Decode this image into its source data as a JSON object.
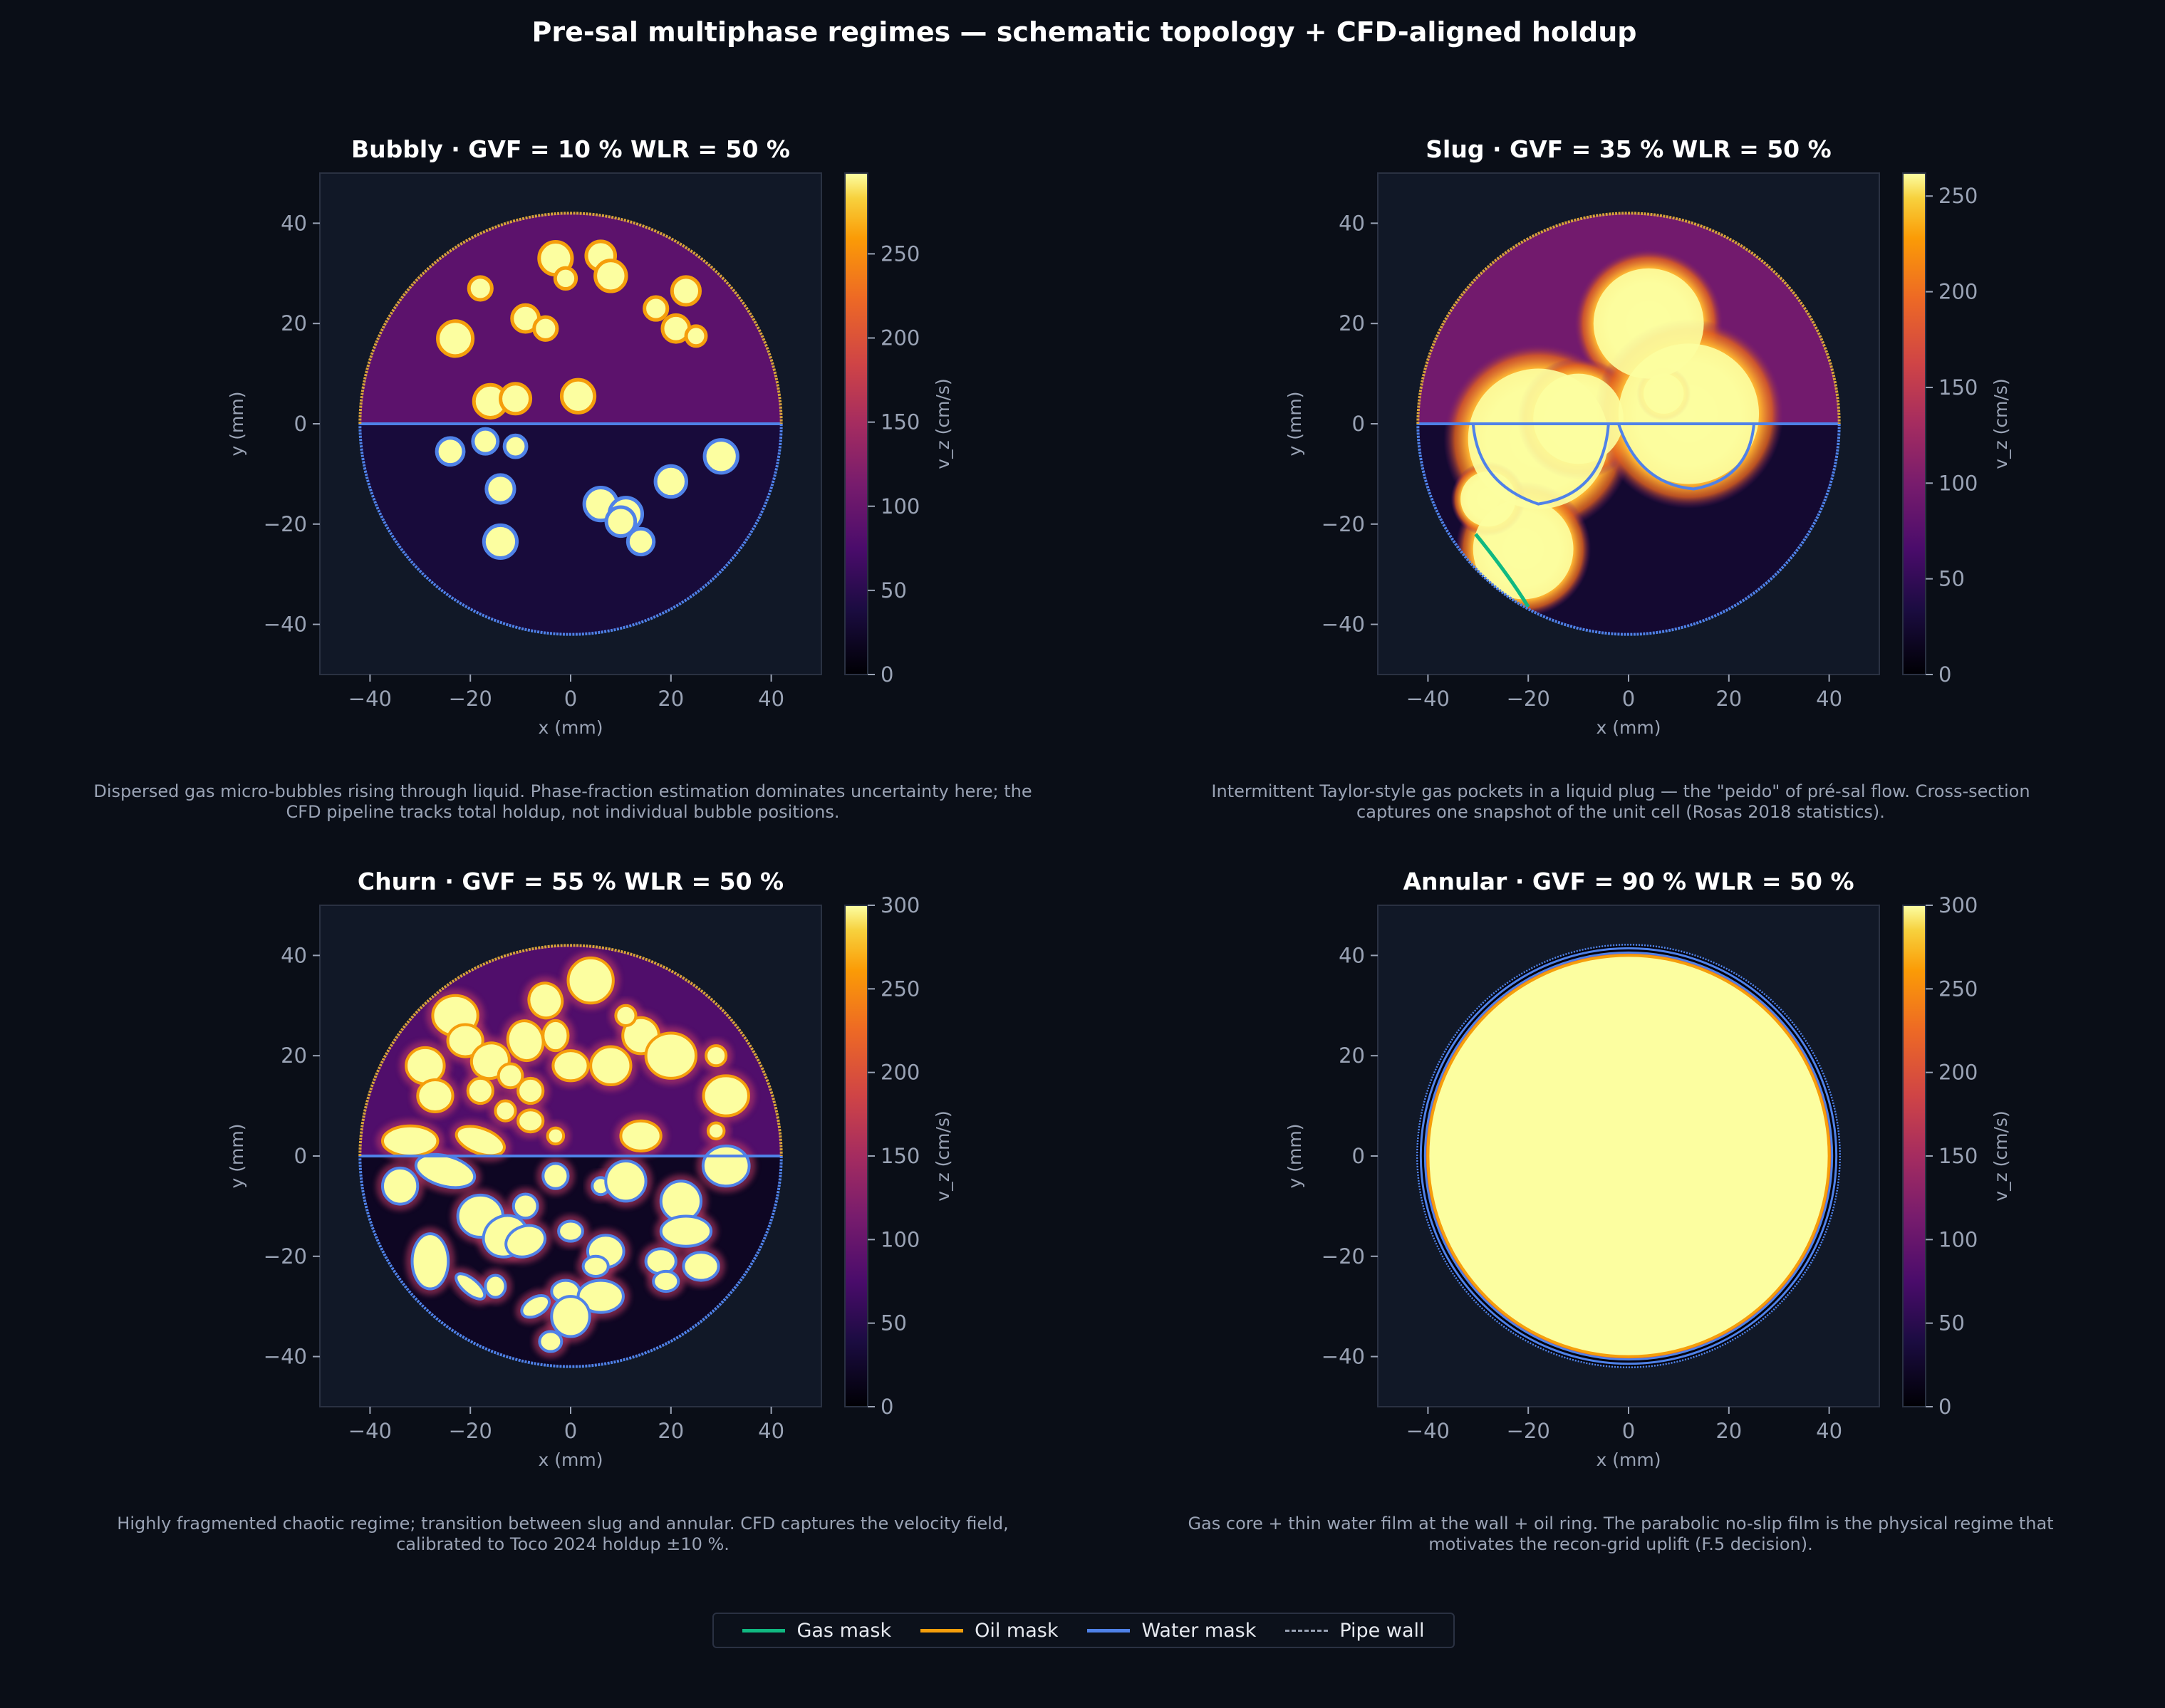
{
  "title": "Pre-sal multiphase regimes — schematic topology + CFD-aligned holdup",
  "colors": {
    "background": "#0a0e17",
    "panel": "#111827",
    "gas": "#10b981",
    "oil": "#f59e0b",
    "water": "#4f82e8",
    "pipe_wall": "#9aa3b5"
  },
  "chart_data": [
    {
      "type": "heatmap",
      "title": "Bubbly  · GVF = 10 % WLR = 50 %",
      "caption": "Dispersed gas micro-bubbles rising through liquid. Phase-fraction estimation dominates uncertainty here; the CFD pipeline tracks total holdup, not individual bubble positions.",
      "xlabel": "x  (mm)",
      "ylabel": "y  (mm)",
      "xlim": [
        -50,
        50
      ],
      "ylim": [
        -50,
        50
      ],
      "xticks": [
        -40,
        -20,
        0,
        20,
        40
      ],
      "yticks": [
        -40,
        -20,
        0,
        20,
        40
      ],
      "colorbar": {
        "label": "v_z  (cm/s)",
        "ticks": [
          0,
          50,
          100,
          150,
          200,
          250
        ],
        "max": 298
      },
      "pipe_radius_mm": 42,
      "oil_velocity": 90,
      "water_velocity": 35,
      "bubbles": [
        [
          -3,
          33,
          3
        ],
        [
          6,
          33.5,
          2.6
        ],
        [
          8,
          29.5,
          2.8
        ],
        [
          -1,
          29,
          1.8
        ],
        [
          -18,
          27,
          2
        ],
        [
          23,
          26.5,
          2.5
        ],
        [
          17,
          23,
          2
        ],
        [
          -9,
          21,
          2.4
        ],
        [
          -5,
          19,
          2
        ],
        [
          21,
          19,
          2.4
        ],
        [
          25,
          17.5,
          1.7
        ],
        [
          -23,
          17,
          3.2
        ],
        [
          -16,
          4.5,
          3
        ],
        [
          -11,
          5,
          2.7
        ],
        [
          1.5,
          5.5,
          3
        ],
        [
          -24,
          -5.5,
          2.4
        ],
        [
          -17,
          -3.5,
          2.2
        ],
        [
          -11,
          -4.5,
          1.9
        ],
        [
          30,
          -6.5,
          3
        ],
        [
          20,
          -11.5,
          2.8
        ],
        [
          -14,
          -13,
          2.5
        ],
        [
          6,
          -16,
          3
        ],
        [
          11,
          -18,
          3
        ],
        [
          10,
          -19.5,
          2.6
        ],
        [
          14,
          -23.5,
          2.3
        ],
        [
          -14,
          -23.5,
          3
        ]
      ]
    },
    {
      "type": "heatmap",
      "title": "Slug    · GVF = 35 % WLR = 50 %",
      "caption": "Intermittent Taylor-style gas pockets in a liquid plug — the \"peido\" of pré-sal flow. Cross-section captures one snapshot of the unit cell (Rosas 2018 statistics).",
      "xlabel": "x  (mm)",
      "ylabel": "y  (mm)",
      "xlim": [
        -50,
        50
      ],
      "ylim": [
        -50,
        50
      ],
      "xticks": [
        -40,
        -20,
        0,
        20,
        40
      ],
      "yticks": [
        -40,
        -20,
        0,
        20,
        40
      ],
      "colorbar": {
        "label": "v_z  (cm/s)",
        "ticks": [
          0,
          50,
          100,
          150,
          200,
          250
        ],
        "max": 262
      },
      "pipe_radius_mm": 42,
      "oil_velocity": 95,
      "water_velocity": 25,
      "pockets": [
        [
          4,
          20,
          11
        ],
        [
          -18,
          -3,
          14
        ],
        [
          -10,
          1,
          9
        ],
        [
          12,
          2,
          14
        ],
        [
          -21,
          -25,
          10
        ],
        [
          -28,
          -15,
          5.5
        ],
        [
          7,
          6,
          4
        ]
      ]
    },
    {
      "type": "heatmap",
      "title": "Churn   · GVF = 55 % WLR = 50 %",
      "caption": "Highly fragmented chaotic regime; transition between slug and annular. CFD captures the velocity field, calibrated to Toco 2024 holdup ±10 %.",
      "xlabel": "x  (mm)",
      "ylabel": "y  (mm)",
      "xlim": [
        -50,
        50
      ],
      "ylim": [
        -50,
        50
      ],
      "xticks": [
        -40,
        -20,
        0,
        20,
        40
      ],
      "yticks": [
        -40,
        -20,
        0,
        20,
        40
      ],
      "colorbar": {
        "label": "v_z  (cm/s)",
        "ticks": [
          0,
          50,
          100,
          150,
          200,
          250,
          300
        ],
        "max": 300
      },
      "pipe_radius_mm": 42,
      "oil_velocity": 80,
      "water_velocity": 20,
      "blobs": [
        [
          4,
          35,
          4.5,
          4.5,
          0
        ],
        [
          -5,
          31,
          3.3,
          3.5,
          20
        ],
        [
          -23,
          28,
          4.5,
          4,
          0
        ],
        [
          -21,
          23,
          3.5,
          3.2,
          0
        ],
        [
          -9,
          23,
          3.5,
          4,
          15
        ],
        [
          -3,
          24,
          2.5,
          3,
          0
        ],
        [
          14,
          24,
          3.6,
          3.6,
          0
        ],
        [
          11,
          28,
          2,
          2,
          0
        ],
        [
          -29,
          18,
          3.8,
          3.6,
          0
        ],
        [
          -16,
          19,
          3.8,
          3.5,
          20
        ],
        [
          -12,
          16,
          2.4,
          2.4,
          0
        ],
        [
          0,
          18,
          3.5,
          3,
          0
        ],
        [
          8,
          18,
          4,
          3.8,
          0
        ],
        [
          20,
          20,
          5,
          4.5,
          0
        ],
        [
          29,
          20,
          2,
          2,
          0
        ],
        [
          31,
          12,
          4.5,
          4,
          0
        ],
        [
          -27,
          12,
          3.5,
          3.2,
          0
        ],
        [
          -18,
          13,
          2.5,
          2.5,
          0
        ],
        [
          -8,
          13,
          2.5,
          2.5,
          0
        ],
        [
          -8,
          7,
          2.5,
          2.2,
          0
        ],
        [
          -13,
          9,
          2,
          2,
          0
        ],
        [
          -32,
          3,
          5.5,
          3,
          0
        ],
        [
          -18,
          3,
          5,
          2.5,
          -20
        ],
        [
          -3,
          4,
          1.6,
          1.6,
          0
        ],
        [
          14,
          4,
          4,
          3,
          0
        ],
        [
          31,
          -2,
          4.6,
          4,
          0
        ],
        [
          29,
          5,
          1.6,
          1.6,
          0
        ],
        [
          -34,
          -6,
          3.5,
          3.6,
          0
        ],
        [
          -25,
          -3,
          6,
          3,
          -15
        ],
        [
          -3,
          -4,
          2.5,
          2.5,
          0
        ],
        [
          6,
          -6,
          1.7,
          1.7,
          0
        ],
        [
          11,
          -5,
          4,
          4,
          0
        ],
        [
          22,
          -9,
          4,
          4,
          0
        ],
        [
          -18,
          -12,
          4.5,
          4.2,
          0
        ],
        [
          -13,
          -16,
          4.5,
          4,
          30
        ],
        [
          -9,
          -10,
          2.4,
          2.4,
          0
        ],
        [
          -28,
          -21,
          3.6,
          5.5,
          0
        ],
        [
          -20,
          -26,
          3.5,
          1.5,
          -40
        ],
        [
          -9,
          -17,
          4,
          3,
          20
        ],
        [
          0,
          -15,
          2.4,
          2,
          0
        ],
        [
          7,
          -19,
          3.6,
          3.2,
          0
        ],
        [
          5,
          -22,
          2.5,
          2,
          0
        ],
        [
          -15,
          -26,
          2,
          2.2,
          0
        ],
        [
          23,
          -15,
          5,
          3,
          0
        ],
        [
          18,
          -21,
          3,
          2.5,
          0
        ],
        [
          26,
          -22,
          3.5,
          2.8,
          0
        ],
        [
          19,
          -25,
          2.5,
          2,
          0
        ],
        [
          -7,
          -30,
          3,
          1.8,
          30
        ],
        [
          -1,
          -27,
          2.8,
          2.2,
          0
        ],
        [
          6,
          -28,
          4.5,
          3.2,
          0
        ],
        [
          0,
          -32,
          3.8,
          4,
          0
        ],
        [
          -4,
          -37,
          2.2,
          2,
          0
        ]
      ]
    },
    {
      "type": "heatmap",
      "title": "Annular · GVF = 90 % WLR = 50 %",
      "caption": "Gas core + thin water film at the wall + oil ring. The parabolic no-slip film is the physical regime that motivates the recon-grid uplift (F.5 decision).",
      "xlabel": "x  (mm)",
      "ylabel": "y  (mm)",
      "xlim": [
        -50,
        50
      ],
      "ylim": [
        -50,
        50
      ],
      "xticks": [
        -40,
        -20,
        0,
        20,
        40
      ],
      "yticks": [
        -40,
        -20,
        0,
        20,
        40
      ],
      "colorbar": {
        "label": "v_z  (cm/s)",
        "ticks": [
          0,
          50,
          100,
          150,
          200,
          250,
          300
        ],
        "max": 300
      },
      "pipe_radius_mm": 42,
      "core_radius_mm": 40
    }
  ],
  "legend": [
    {
      "label": "Gas mask",
      "color": "#10b981",
      "style": "solid"
    },
    {
      "label": "Oil mask",
      "color": "#f59e0b",
      "style": "solid"
    },
    {
      "label": "Water mask",
      "color": "#4f82e8",
      "style": "solid"
    },
    {
      "label": "Pipe wall",
      "color": "#9aa3b5",
      "style": "dashed"
    }
  ]
}
